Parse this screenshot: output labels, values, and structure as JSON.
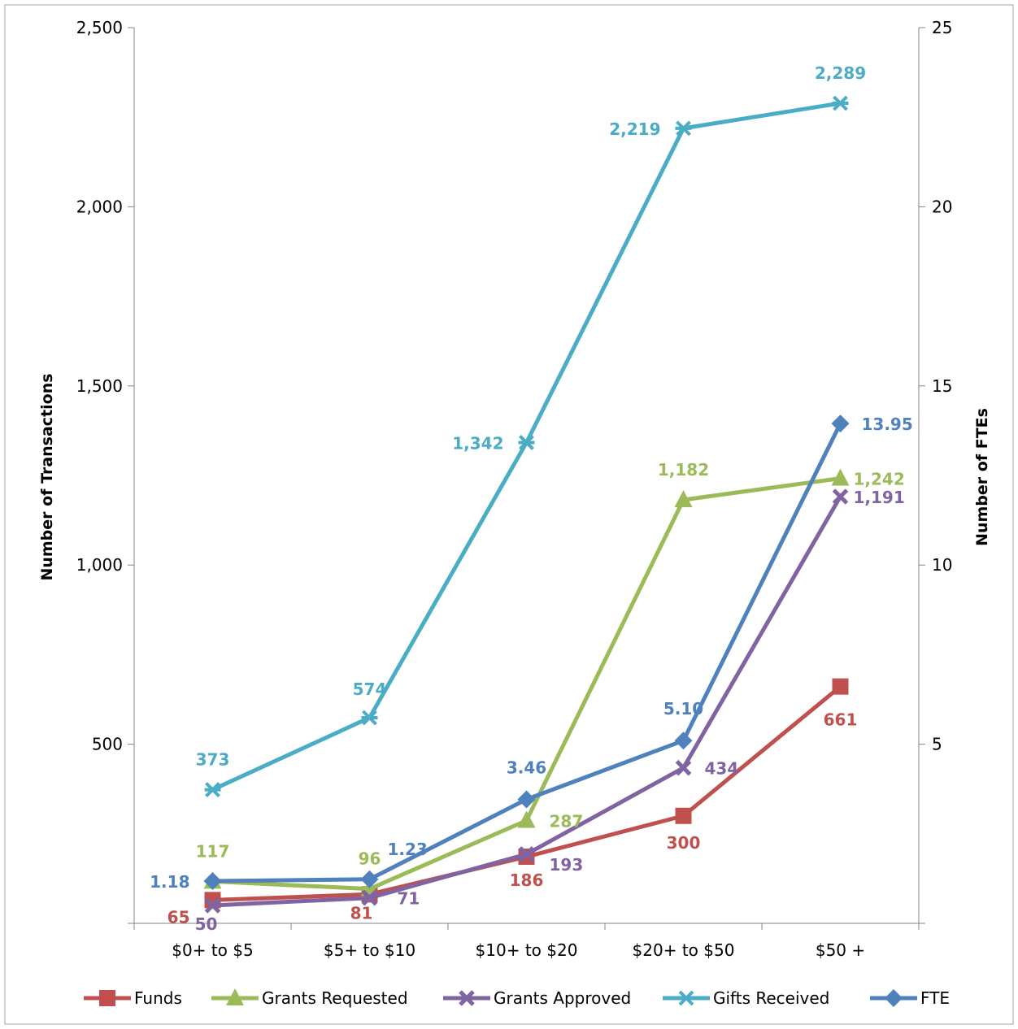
{
  "chart_data": {
    "type": "line",
    "categories": [
      "$0+ to $5",
      "$5+ to $10",
      "$10+ to $20",
      "$20+ to $50",
      "$50 +"
    ],
    "ylabel": "Number of Transactions",
    "y2label": "Number of FTEs",
    "ylim": [
      0,
      2500
    ],
    "y2lim": [
      0,
      25
    ],
    "yticks": [
      "500",
      "1,000",
      "1,500",
      "2,000",
      "2,500"
    ],
    "y2ticks": [
      "5",
      "10",
      "15",
      "20",
      "25"
    ],
    "grid": false,
    "legend_position": "bottom",
    "series": [
      {
        "name": "Funds",
        "axis": "left",
        "color": "#c0504d",
        "marker": "square",
        "values": [
          65,
          81,
          186,
          300,
          661
        ],
        "labels": [
          "65",
          "81",
          "186",
          "300",
          "661"
        ]
      },
      {
        "name": "Grants Requested",
        "axis": "left",
        "color": "#9bbb59",
        "marker": "triangle",
        "values": [
          117,
          96,
          287,
          1182,
          1242
        ],
        "labels": [
          "117",
          "96",
          "287",
          "1,182",
          "1,242"
        ]
      },
      {
        "name": "Grants Approved",
        "axis": "left",
        "color": "#8064a2",
        "marker": "x",
        "values": [
          50,
          71,
          193,
          434,
          1191
        ],
        "labels": [
          "50",
          "71",
          "193",
          "434",
          "1,191"
        ]
      },
      {
        "name": "Gifts Received",
        "axis": "left",
        "color": "#4bacc6",
        "marker": "star",
        "values": [
          373,
          574,
          1342,
          2219,
          2289
        ],
        "labels": [
          "373",
          "574",
          "1,342",
          "2,219",
          "2,289"
        ]
      },
      {
        "name": "FTE",
        "axis": "right",
        "color": "#4f81bd",
        "marker": "diamond",
        "values": [
          1.18,
          1.23,
          3.46,
          5.1,
          13.95
        ],
        "labels": [
          "1.18",
          "1.23",
          "3.46",
          "5.10",
          "13.95"
        ]
      }
    ]
  }
}
